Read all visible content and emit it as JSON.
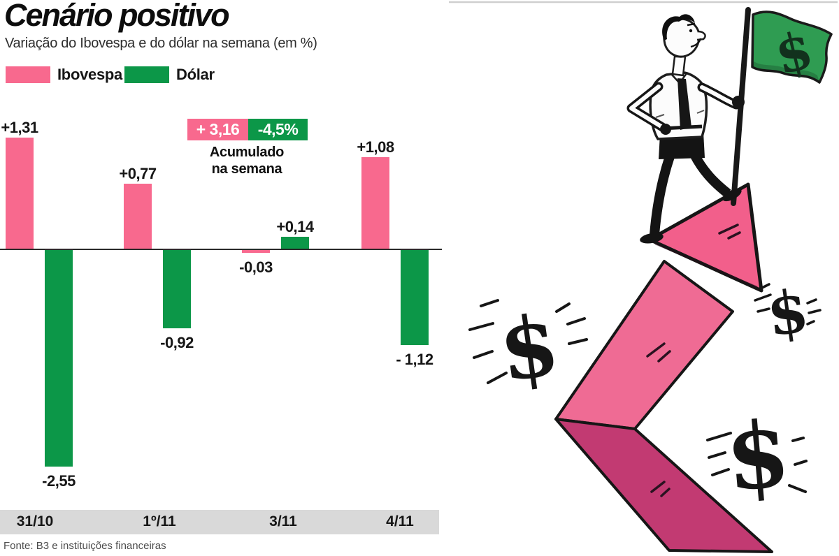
{
  "title": "Cenário positivo",
  "subtitle": "Variação do Ibovespa e do dólar na semana (em %)",
  "legend": [
    {
      "label": "Ibovespa",
      "color": "#f8698e"
    },
    {
      "label": "Dólar",
      "color": "#0c9748"
    }
  ],
  "accumulated": {
    "ibovespa_label": "+ 3,16",
    "dolar_label": "-4,5%",
    "caption_line1": "Acumulado",
    "caption_line2": "na semana"
  },
  "source": "Fonte: B3 e instituições financeiras",
  "colors": {
    "pink": "#f8698e",
    "green": "#0c9748",
    "arrow_light_pink": "#ef6b94",
    "arrow_head_pink": "#f25f8b",
    "arrow_dark_pink": "#c23a72",
    "flag_green": "#2f9c52",
    "strip_gray": "#d9d9d9"
  },
  "chart_data": {
    "type": "bar",
    "categories": [
      "31/10",
      "1º/11",
      "3/11",
      "4/11"
    ],
    "series": [
      {
        "name": "Ibovespa",
        "color": "#f8698e",
        "values": [
          1.31,
          0.77,
          -0.03,
          1.08
        ],
        "labels": [
          "+1,31",
          "+0,77",
          "-0,03",
          "+1,08"
        ]
      },
      {
        "name": "Dólar",
        "color": "#0c9748",
        "values": [
          -2.55,
          -0.92,
          0.14,
          -1.12
        ],
        "labels": [
          "-2,55",
          "-0,92",
          "+0,14",
          "- 1,12"
        ]
      }
    ],
    "accumulated_week": {
      "ibovespa": 3.16,
      "dolar": -4.5
    },
    "unit": "%",
    "baseline_value": 0,
    "grid": false,
    "legend_position": "top-left"
  },
  "illustration": {
    "description": "Homem fincando bandeira com cifrão no topo de uma seta ascendente",
    "dollar_symbol": "$"
  }
}
